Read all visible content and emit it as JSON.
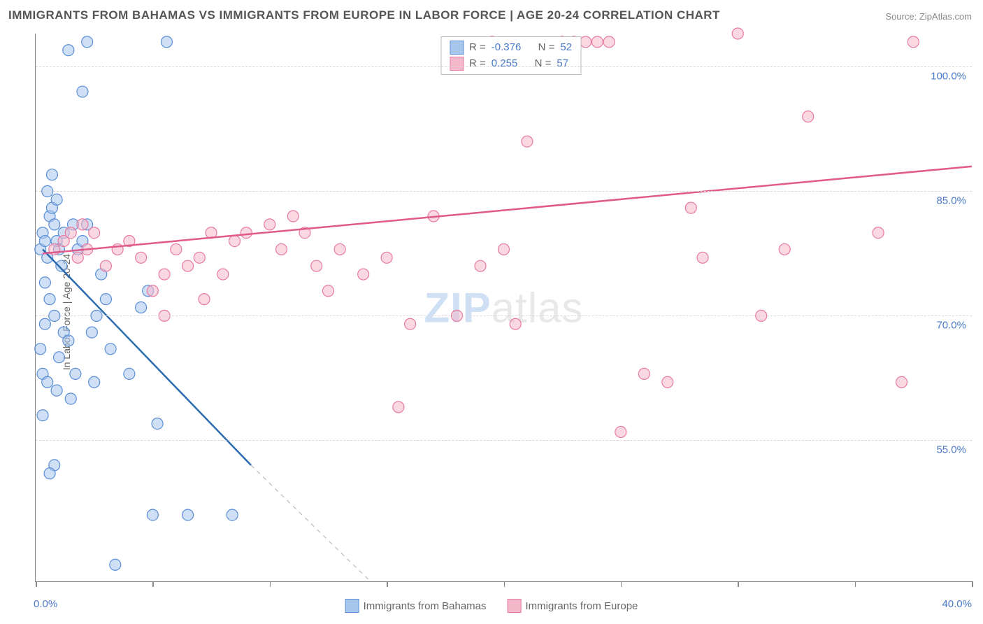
{
  "title": "IMMIGRANTS FROM BAHAMAS VS IMMIGRANTS FROM EUROPE IN LABOR FORCE | AGE 20-24 CORRELATION CHART",
  "source": "Source: ZipAtlas.com",
  "y_axis_title": "In Labor Force | Age 20-24",
  "x_min_label": "0.0%",
  "x_max_label": "40.0%",
  "watermark_bold": "ZIP",
  "watermark_rest": "atlas",
  "chart": {
    "type": "scatter",
    "xlim": [
      0,
      40
    ],
    "ylim": [
      38,
      104
    ],
    "x_ticks": [
      0,
      5,
      10,
      15,
      20,
      25,
      30,
      35,
      40
    ],
    "y_ticks": [
      55,
      70,
      85,
      100
    ],
    "y_tick_labels": [
      "55.0%",
      "70.0%",
      "85.0%",
      "100.0%"
    ],
    "grid_color": "#d8d8d8",
    "axis_color": "#888888",
    "background_color": "#ffffff",
    "marker_radius": 8,
    "marker_opacity": 0.55,
    "line_width": 2.5,
    "series": [
      {
        "name": "Immigrants from Bahamas",
        "color_fill": "#a8c5ec",
        "color_stroke": "#5b8fd6",
        "line_color": "#2b6cb0",
        "R": "-0.376",
        "N": "52",
        "trend": {
          "x1": 0.3,
          "y1": 78,
          "x2": 9.2,
          "y2": 52
        },
        "trend_ext": {
          "x1": 9.2,
          "y1": 52,
          "x2": 14.3,
          "y2": 38
        },
        "points": [
          [
            0.2,
            78
          ],
          [
            0.3,
            80
          ],
          [
            0.4,
            79
          ],
          [
            0.5,
            77
          ],
          [
            0.6,
            82
          ],
          [
            0.7,
            83
          ],
          [
            0.8,
            81
          ],
          [
            0.9,
            79
          ],
          [
            1.0,
            78
          ],
          [
            1.1,
            76
          ],
          [
            0.4,
            74
          ],
          [
            0.6,
            72
          ],
          [
            0.8,
            70
          ],
          [
            1.2,
            68
          ],
          [
            1.4,
            67
          ],
          [
            1.0,
            65
          ],
          [
            0.3,
            63
          ],
          [
            0.5,
            62
          ],
          [
            0.5,
            85
          ],
          [
            0.7,
            87
          ],
          [
            0.9,
            84
          ],
          [
            1.6,
            81
          ],
          [
            1.2,
            80
          ],
          [
            1.8,
            78
          ],
          [
            2.0,
            79
          ],
          [
            2.2,
            81
          ],
          [
            2.4,
            68
          ],
          [
            2.6,
            70
          ],
          [
            2.8,
            75
          ],
          [
            3.0,
            72
          ],
          [
            3.2,
            66
          ],
          [
            5.2,
            57
          ],
          [
            4.8,
            73
          ],
          [
            4.5,
            71
          ],
          [
            5.0,
            46
          ],
          [
            6.5,
            46
          ],
          [
            8.4,
            46
          ],
          [
            3.4,
            40
          ],
          [
            1.4,
            102
          ],
          [
            2.2,
            103
          ],
          [
            5.6,
            103
          ],
          [
            2.0,
            97
          ],
          [
            0.8,
            52
          ],
          [
            0.6,
            51
          ],
          [
            0.4,
            69
          ],
          [
            0.2,
            66
          ],
          [
            1.7,
            63
          ],
          [
            0.9,
            61
          ],
          [
            0.3,
            58
          ],
          [
            2.5,
            62
          ],
          [
            1.5,
            60
          ],
          [
            4.0,
            63
          ]
        ]
      },
      {
        "name": "Immigrants from Europe",
        "color_fill": "#f5b8cb",
        "color_stroke": "#e87ba0",
        "line_color": "#e05a8a",
        "R": "0.255",
        "N": "57",
        "trend": {
          "x1": 0.3,
          "y1": 77.5,
          "x2": 40,
          "y2": 88
        },
        "points": [
          [
            0.8,
            78
          ],
          [
            1.2,
            79
          ],
          [
            1.5,
            80
          ],
          [
            1.8,
            77
          ],
          [
            2.0,
            81
          ],
          [
            2.2,
            78
          ],
          [
            2.5,
            80
          ],
          [
            3.0,
            76
          ],
          [
            3.5,
            78
          ],
          [
            4.0,
            79
          ],
          [
            4.5,
            77
          ],
          [
            5.0,
            73
          ],
          [
            5.5,
            75
          ],
          [
            6.0,
            78
          ],
          [
            6.5,
            76
          ],
          [
            7.0,
            77
          ],
          [
            7.5,
            80
          ],
          [
            8.0,
            75
          ],
          [
            8.5,
            79
          ],
          [
            9.0,
            80
          ],
          [
            10.0,
            81
          ],
          [
            10.5,
            78
          ],
          [
            11.0,
            82
          ],
          [
            11.5,
            80
          ],
          [
            12.0,
            76
          ],
          [
            13.0,
            78
          ],
          [
            14.0,
            75
          ],
          [
            15.0,
            77
          ],
          [
            16.0,
            69
          ],
          [
            17.0,
            82
          ],
          [
            18.0,
            70
          ],
          [
            15.5,
            59
          ],
          [
            19.0,
            76
          ],
          [
            20.0,
            78
          ],
          [
            20.5,
            69
          ],
          [
            21.0,
            91
          ],
          [
            22.5,
            103
          ],
          [
            23.0,
            103
          ],
          [
            23.5,
            103
          ],
          [
            24.0,
            103
          ],
          [
            24.5,
            103
          ],
          [
            28.0,
            83
          ],
          [
            26.0,
            63
          ],
          [
            27.0,
            62
          ],
          [
            25.0,
            56
          ],
          [
            28.5,
            77
          ],
          [
            30.0,
            104
          ],
          [
            31.0,
            70
          ],
          [
            32.0,
            78
          ],
          [
            33.0,
            94
          ],
          [
            36.0,
            80
          ],
          [
            37.5,
            103
          ],
          [
            37.0,
            62
          ],
          [
            5.5,
            70
          ],
          [
            7.2,
            72
          ],
          [
            12.5,
            73
          ],
          [
            19.5,
            103
          ]
        ]
      }
    ]
  },
  "legend": {
    "series1_label": "Immigrants from Bahamas",
    "series2_label": "Immigrants from Europe"
  },
  "stats_labels": {
    "R": "R =",
    "N": "N ="
  }
}
